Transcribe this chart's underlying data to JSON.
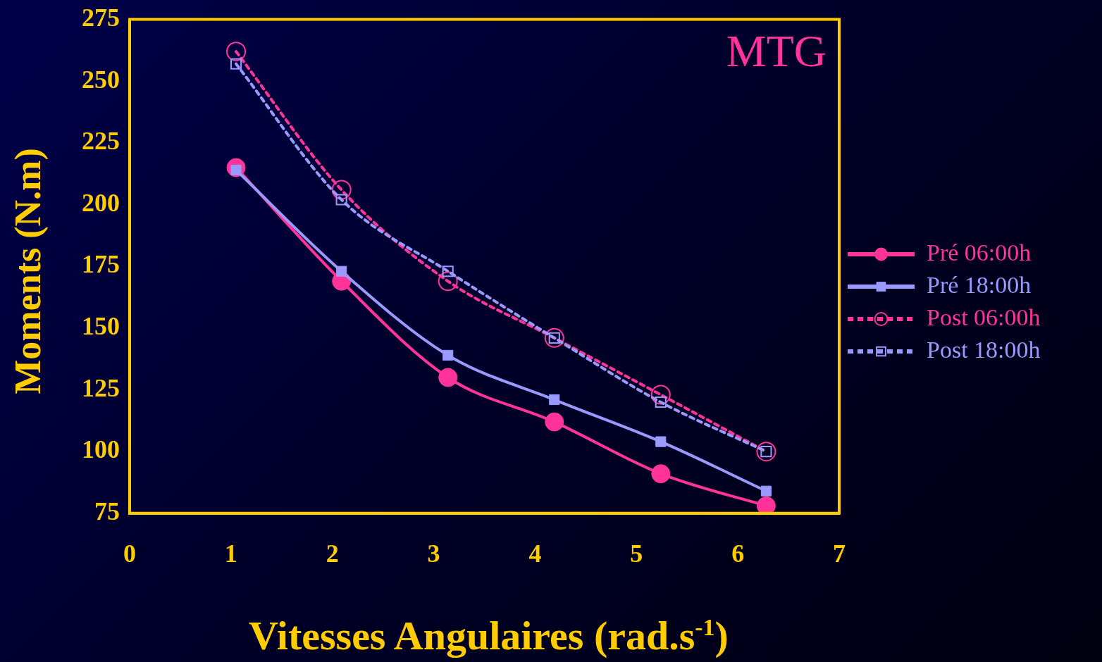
{
  "chart_data": {
    "type": "line",
    "xlabel": "Vitesses Angulaires (rad.s$^{-1}$)",
    "ylabel": "Moments (N.m)",
    "annotations": [
      "MTG"
    ],
    "xlim": [
      0,
      7
    ],
    "xticks": [
      0,
      1,
      2,
      3,
      4,
      5,
      6,
      7
    ],
    "ylim": [
      75,
      275
    ],
    "yticks": [
      75,
      100,
      125,
      150,
      175,
      200,
      225,
      250,
      275
    ],
    "grid": false,
    "legend": "right",
    "series": [
      {
        "name": "Pré 06:00h",
        "color": "#ff3399",
        "marker": "circle",
        "line_style": "solid",
        "x": [
          1.05,
          2.09,
          3.14,
          4.19,
          5.24,
          6.28
        ],
        "values": [
          215,
          169,
          130,
          112,
          91,
          78
        ]
      },
      {
        "name": "Pré 18:00h",
        "color": "#9999ff",
        "marker": "square",
        "line_style": "solid",
        "x": [
          1.05,
          2.09,
          3.14,
          4.19,
          5.24,
          6.28
        ],
        "values": [
          214,
          173,
          139,
          121,
          104,
          84
        ]
      },
      {
        "name": "Post 06:00h",
        "color": "#ff3399",
        "marker": "circle",
        "line_style": "dotted",
        "x": [
          1.05,
          2.09,
          3.14,
          4.19,
          5.24,
          6.28
        ],
        "values": [
          262,
          206,
          169,
          146,
          123,
          100
        ]
      },
      {
        "name": "Post 18:00h",
        "color": "#9999ff",
        "marker": "square",
        "line_style": "dotted",
        "x": [
          1.05,
          2.09,
          3.14,
          4.19,
          5.24,
          6.28
        ],
        "values": [
          257,
          202,
          173,
          146,
          120,
          100
        ]
      }
    ]
  }
}
